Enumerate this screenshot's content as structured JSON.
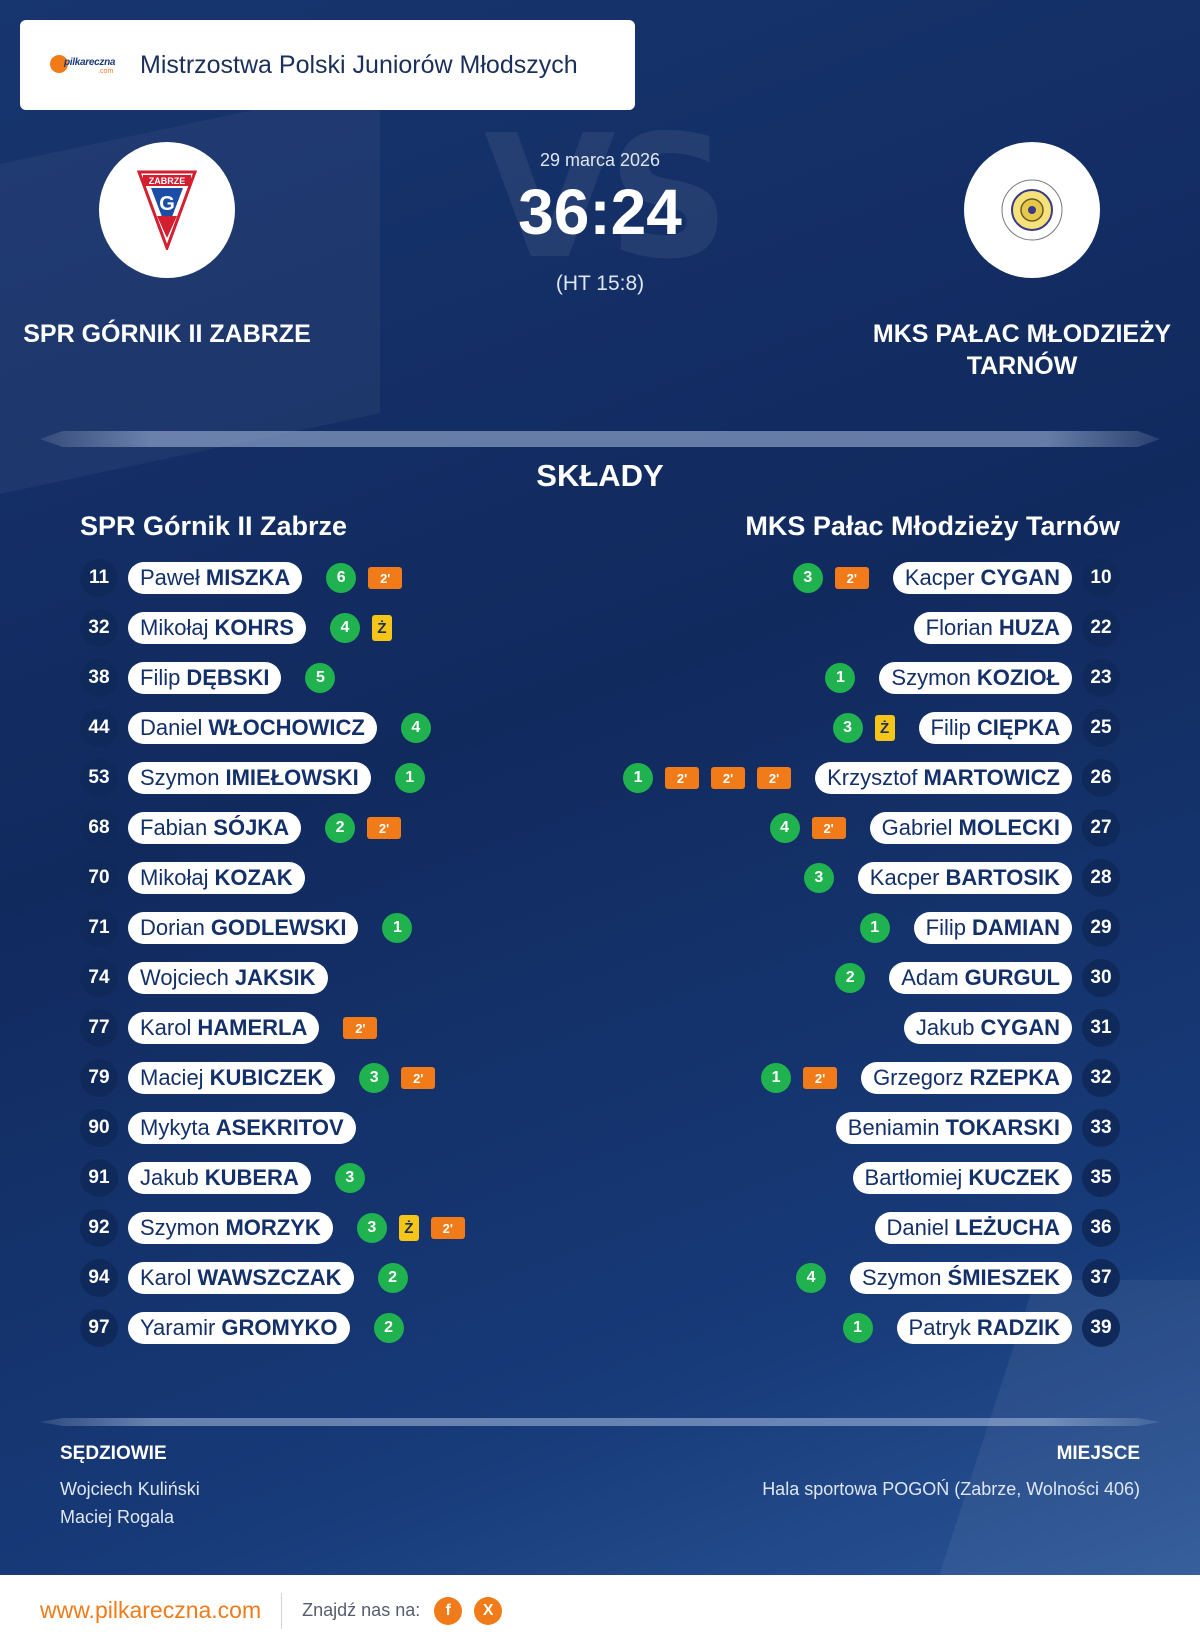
{
  "competition": {
    "title": "Mistrzostwa Polski Juniorów Młodszych",
    "brand_text": "pilkareczna",
    "brand_sub": ".com"
  },
  "match": {
    "date": "29 marca 2026",
    "score": "36:24",
    "halftime": "(HT 15:8)",
    "vs_text": "VS",
    "home": {
      "name": "SPR GÓRNIK II ZABRZE",
      "crest_text": "ZABRZE",
      "crest_letter": "G"
    },
    "away": {
      "name": "MKS PAŁAC MŁODZIEŻY TARNÓW"
    }
  },
  "lineups": {
    "title": "SKŁADY",
    "home_title": "SPR Górnik II Zabrze",
    "away_title": "MKS Pałac Młodzieży Tarnów",
    "yellow_symbol": "Ż",
    "penalty_symbol": "2'",
    "home": [
      {
        "number": "11",
        "first": "Paweł",
        "last": "MISZKA",
        "goals": "6",
        "yellow": false,
        "penalties": 1
      },
      {
        "number": "32",
        "first": "Mikołaj",
        "last": "KOHRS",
        "goals": "4",
        "yellow": true,
        "penalties": 0
      },
      {
        "number": "38",
        "first": "Filip",
        "last": "DĘBSKI",
        "goals": "5",
        "yellow": false,
        "penalties": 0
      },
      {
        "number": "44",
        "first": "Daniel",
        "last": "WŁOCHOWICZ",
        "goals": "4",
        "yellow": false,
        "penalties": 0
      },
      {
        "number": "53",
        "first": "Szymon",
        "last": "IMIEŁOWSKI",
        "goals": "1",
        "yellow": false,
        "penalties": 0
      },
      {
        "number": "68",
        "first": "Fabian",
        "last": "SÓJKA",
        "goals": "2",
        "yellow": false,
        "penalties": 1
      },
      {
        "number": "70",
        "first": "Mikołaj",
        "last": "KOZAK",
        "goals": "",
        "yellow": false,
        "penalties": 0
      },
      {
        "number": "71",
        "first": "Dorian",
        "last": "GODLEWSKI",
        "goals": "1",
        "yellow": false,
        "penalties": 0
      },
      {
        "number": "74",
        "first": "Wojciech",
        "last": "JAKSIK",
        "goals": "",
        "yellow": false,
        "penalties": 0
      },
      {
        "number": "77",
        "first": "Karol",
        "last": "HAMERLA",
        "goals": "",
        "yellow": false,
        "penalties": 1
      },
      {
        "number": "79",
        "first": "Maciej",
        "last": "KUBICZEK",
        "goals": "3",
        "yellow": false,
        "penalties": 1
      },
      {
        "number": "90",
        "first": "Mykyta",
        "last": "ASEKRITOV",
        "goals": "",
        "yellow": false,
        "penalties": 0
      },
      {
        "number": "91",
        "first": "Jakub",
        "last": "KUBERA",
        "goals": "3",
        "yellow": false,
        "penalties": 0
      },
      {
        "number": "92",
        "first": "Szymon",
        "last": "MORZYK",
        "goals": "3",
        "yellow": true,
        "penalties": 1
      },
      {
        "number": "94",
        "first": "Karol",
        "last": "WAWSZCZAK",
        "goals": "2",
        "yellow": false,
        "penalties": 0
      },
      {
        "number": "97",
        "first": "Yaramir",
        "last": "GROMYKO",
        "goals": "2",
        "yellow": false,
        "penalties": 0
      }
    ],
    "away": [
      {
        "number": "10",
        "first": "Kacper",
        "last": "CYGAN",
        "goals": "3",
        "yellow": false,
        "penalties": 1
      },
      {
        "number": "22",
        "first": "Florian",
        "last": "HUZA",
        "goals": "",
        "yellow": false,
        "penalties": 0
      },
      {
        "number": "23",
        "first": "Szymon",
        "last": "KOZIOŁ",
        "goals": "1",
        "yellow": false,
        "penalties": 0
      },
      {
        "number": "25",
        "first": "Filip",
        "last": "CIĘPKA",
        "goals": "3",
        "yellow": true,
        "penalties": 0
      },
      {
        "number": "26",
        "first": "Krzysztof",
        "last": "MARTOWICZ",
        "goals": "1",
        "yellow": false,
        "penalties": 3
      },
      {
        "number": "27",
        "first": "Gabriel",
        "last": "MOLECKI",
        "goals": "4",
        "yellow": false,
        "penalties": 1
      },
      {
        "number": "28",
        "first": "Kacper",
        "last": "BARTOSIK",
        "goals": "3",
        "yellow": false,
        "penalties": 0
      },
      {
        "number": "29",
        "first": "Filip",
        "last": "DAMIAN",
        "goals": "1",
        "yellow": false,
        "penalties": 0
      },
      {
        "number": "30",
        "first": "Adam",
        "last": "GURGUL",
        "goals": "2",
        "yellow": false,
        "penalties": 0
      },
      {
        "number": "31",
        "first": "Jakub",
        "last": "CYGAN",
        "goals": "",
        "yellow": false,
        "penalties": 0
      },
      {
        "number": "32",
        "first": "Grzegorz",
        "last": "RZEPKA",
        "goals": "1",
        "yellow": false,
        "penalties": 1
      },
      {
        "number": "33",
        "first": "Beniamin",
        "last": "TOKARSKI",
        "goals": "",
        "yellow": false,
        "penalties": 0
      },
      {
        "number": "35",
        "first": "Bartłomiej",
        "last": "KUCZEK",
        "goals": "",
        "yellow": false,
        "penalties": 0
      },
      {
        "number": "36",
        "first": "Daniel",
        "last": "LEŻUCHA",
        "goals": "",
        "yellow": false,
        "penalties": 0
      },
      {
        "number": "37",
        "first": "Szymon",
        "last": "ŚMIESZEK",
        "goals": "4",
        "yellow": false,
        "penalties": 0
      },
      {
        "number": "39",
        "first": "Patryk",
        "last": "RADZIK",
        "goals": "1",
        "yellow": false,
        "penalties": 0
      }
    ]
  },
  "officials": {
    "title": "SĘDZIOWIE",
    "names": [
      "Wojciech Kuliński",
      "Maciej Rogala"
    ]
  },
  "venue": {
    "title": "MIEJSCE",
    "name": "Hala sportowa POGOŃ (Zabrze, Wolności 406)"
  },
  "footer": {
    "site": "www.pilkareczna.com",
    "find_us": "Znajdź nas na:",
    "facebook": "f",
    "x": "X"
  },
  "colors": {
    "goal": "#1fb24f",
    "penalty": "#f07b18",
    "yellow_card": "#f5c518",
    "navy": "#112a5e"
  }
}
